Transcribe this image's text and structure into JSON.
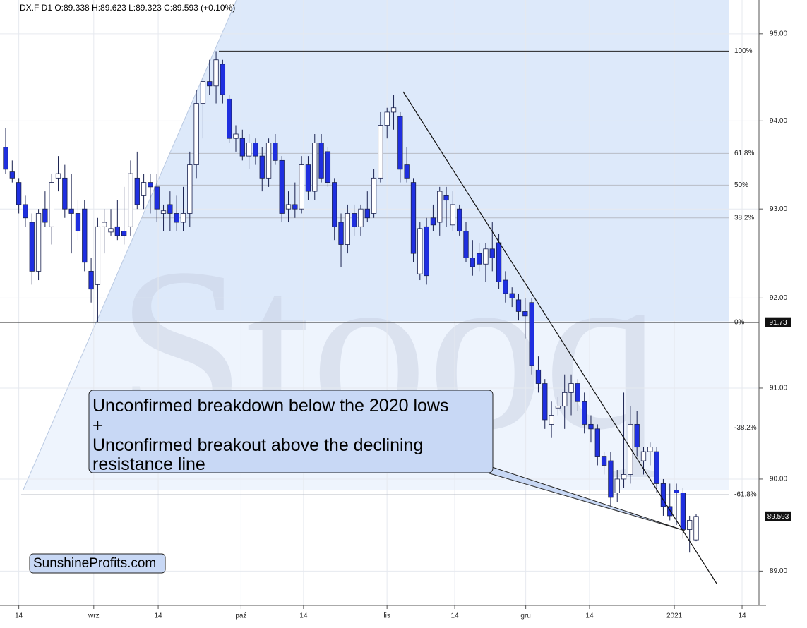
{
  "chart_data": {
    "type": "candlestick",
    "title": "DX.F  D1  O:89.338  H:89.623  L:89.323  C:89.593  (+0.10%)",
    "watermark": "Stooq",
    "branding": "SunshineProfits.com",
    "annotation": [
      "Unconfirmed breakdown below the 2020 lows",
      "+",
      "Unconfirmed breakout above the declining",
      "resistance line"
    ],
    "up_color": "#ffffff",
    "down_color": "#1f2fe0",
    "log_scale": true,
    "grid": true,
    "ylim": [
      88.63,
      95.39
    ],
    "yticks": [
      {
        "value": 89,
        "label": "89.00"
      },
      {
        "value": 90,
        "label": "90.00"
      },
      {
        "value": 91,
        "label": "91.00"
      },
      {
        "value": 92,
        "label": "92.00"
      },
      {
        "value": 93,
        "label": "93.00"
      },
      {
        "value": 94,
        "label": "94.00"
      },
      {
        "value": 95,
        "label": "95.00"
      }
    ],
    "xlim": [
      -0.86,
      113.5
    ],
    "xticks": [
      {
        "value": 2.0,
        "label": "14"
      },
      {
        "value": 13.4,
        "label": "wrz"
      },
      {
        "value": 23.2,
        "label": "14"
      },
      {
        "value": 35.8,
        "label": "paź"
      },
      {
        "value": 45.3,
        "label": "14"
      },
      {
        "value": 58.0,
        "label": "lis"
      },
      {
        "value": 68.3,
        "label": "14"
      },
      {
        "value": 79.1,
        "label": "gru"
      },
      {
        "value": 88.8,
        "label": "14"
      },
      {
        "value": 101.7,
        "label": "2021"
      },
      {
        "value": 112.0,
        "label": "14"
      }
    ],
    "fib_levels": [
      {
        "value": 94.8,
        "label": "100%"
      },
      {
        "value": 93.63,
        "label": "61.8%"
      },
      {
        "value": 93.27,
        "label": "50%"
      },
      {
        "value": 92.9,
        "label": "38.2%"
      },
      {
        "value": 91.73,
        "label": "0%"
      },
      {
        "value": 90.56,
        "label": "-38.2%"
      },
      {
        "value": 89.83,
        "label": "-61.8%"
      }
    ],
    "price_labels": [
      {
        "value": 91.73,
        "label": "91.73"
      },
      {
        "value": 89.593,
        "label": "89.593"
      }
    ],
    "ohlc": [
      [
        93.7,
        93.92,
        93.4,
        93.45
      ],
      [
        93.42,
        93.55,
        93.3,
        93.35
      ],
      [
        93.3,
        93.35,
        92.95,
        93.05
      ],
      [
        93.05,
        93.15,
        92.8,
        92.9
      ],
      [
        92.85,
        92.95,
        92.15,
        92.3
      ],
      [
        92.3,
        93.0,
        92.2,
        92.95
      ],
      [
        93.0,
        93.2,
        92.8,
        92.85
      ],
      [
        92.8,
        93.4,
        92.6,
        93.3
      ],
      [
        93.35,
        93.6,
        93.2,
        93.4
      ],
      [
        93.35,
        93.5,
        92.9,
        93.0
      ],
      [
        93.0,
        93.4,
        92.5,
        92.95
      ],
      [
        92.95,
        93.1,
        92.65,
        92.75
      ],
      [
        93.0,
        93.1,
        92.3,
        92.4
      ],
      [
        92.3,
        92.45,
        91.95,
        92.1
      ],
      [
        92.15,
        92.9,
        91.73,
        92.8
      ],
      [
        92.8,
        93.0,
        92.5,
        92.85
      ],
      [
        92.74,
        93.0,
        92.7,
        92.78
      ],
      [
        92.8,
        93.1,
        92.65,
        92.7
      ],
      [
        92.75,
        93.25,
        92.6,
        92.7
      ],
      [
        92.8,
        93.55,
        92.7,
        93.4
      ],
      [
        93.35,
        93.65,
        93.0,
        93.05
      ],
      [
        93.15,
        93.4,
        93.0,
        93.3
      ],
      [
        93.3,
        93.4,
        92.95,
        93.25
      ],
      [
        93.25,
        93.4,
        92.85,
        93.0
      ],
      [
        92.95,
        93.05,
        92.75,
        92.98
      ],
      [
        93.05,
        93.2,
        92.75,
        92.95
      ],
      [
        92.95,
        93.15,
        92.75,
        92.85
      ],
      [
        92.85,
        93.25,
        92.75,
        92.95
      ],
      [
        92.95,
        93.65,
        92.8,
        93.5
      ],
      [
        93.5,
        94.35,
        93.35,
        94.2
      ],
      [
        94.2,
        94.5,
        93.8,
        94.45
      ],
      [
        94.45,
        94.7,
        94.3,
        94.4
      ],
      [
        94.4,
        94.8,
        94.2,
        94.7
      ],
      [
        94.65,
        94.7,
        94.2,
        94.3
      ],
      [
        94.25,
        94.3,
        93.75,
        93.8
      ],
      [
        93.8,
        93.95,
        93.65,
        93.85
      ],
      [
        93.8,
        93.9,
        93.55,
        93.6
      ],
      [
        93.6,
        93.85,
        93.45,
        93.75
      ],
      [
        93.75,
        93.8,
        93.5,
        93.6
      ],
      [
        93.6,
        93.7,
        93.2,
        93.35
      ],
      [
        93.35,
        93.8,
        93.25,
        93.75
      ],
      [
        93.75,
        93.85,
        93.5,
        93.55
      ],
      [
        93.55,
        93.6,
        92.85,
        92.95
      ],
      [
        93.0,
        93.2,
        92.85,
        93.05
      ],
      [
        93.05,
        93.3,
        92.9,
        93.0
      ],
      [
        93.0,
        93.6,
        92.95,
        93.5
      ],
      [
        93.5,
        93.6,
        93.1,
        93.2
      ],
      [
        93.2,
        93.85,
        93.1,
        93.75
      ],
      [
        93.75,
        93.85,
        93.3,
        93.35
      ],
      [
        93.65,
        93.7,
        93.25,
        93.3
      ],
      [
        93.3,
        93.35,
        92.65,
        92.8
      ],
      [
        92.85,
        92.95,
        92.35,
        92.6
      ],
      [
        92.6,
        93.05,
        92.5,
        92.95
      ],
      [
        92.95,
        93.05,
        92.7,
        92.8
      ],
      [
        92.8,
        93.05,
        92.7,
        93.0
      ],
      [
        93.0,
        93.2,
        92.85,
        92.9
      ],
      [
        92.95,
        93.45,
        92.9,
        93.35
      ],
      [
        93.35,
        94.1,
        93.3,
        93.95
      ],
      [
        93.95,
        94.15,
        93.8,
        94.1
      ],
      [
        94.1,
        94.3,
        93.9,
        94.15
      ],
      [
        94.05,
        94.1,
        93.3,
        93.45
      ],
      [
        93.5,
        93.7,
        93.3,
        93.35
      ],
      [
        93.3,
        93.35,
        92.4,
        92.5
      ],
      [
        92.27,
        92.85,
        92.2,
        92.78
      ],
      [
        92.8,
        92.9,
        92.15,
        92.25
      ],
      [
        92.9,
        93.05,
        92.75,
        92.82
      ],
      [
        92.85,
        93.25,
        92.7,
        93.2
      ],
      [
        93.15,
        93.25,
        92.8,
        93.1
      ],
      [
        92.82,
        93.2,
        92.75,
        93.05
      ],
      [
        93.0,
        93.05,
        92.7,
        92.75
      ],
      [
        92.75,
        92.85,
        92.4,
        92.45
      ],
      [
        92.45,
        92.65,
        92.25,
        92.35
      ],
      [
        92.5,
        92.62,
        92.3,
        92.38
      ],
      [
        92.38,
        92.62,
        92.18,
        92.55
      ],
      [
        92.55,
        92.85,
        92.3,
        92.45
      ],
      [
        92.62,
        92.72,
        92.1,
        92.18
      ],
      [
        92.2,
        92.3,
        91.95,
        92.05
      ],
      [
        92.05,
        92.12,
        91.9,
        92.0
      ],
      [
        91.98,
        92.05,
        91.75,
        91.85
      ],
      [
        91.85,
        92.0,
        91.55,
        91.8
      ],
      [
        91.95,
        92.0,
        91.15,
        91.25
      ],
      [
        91.2,
        91.35,
        90.95,
        91.05
      ],
      [
        91.05,
        91.1,
        90.55,
        90.65
      ],
      [
        90.6,
        90.85,
        90.45,
        90.7
      ],
      [
        90.78,
        90.9,
        90.7,
        90.8
      ],
      [
        90.8,
        91.15,
        90.55,
        90.95
      ],
      [
        90.95,
        91.15,
        90.7,
        91.05
      ],
      [
        91.05,
        91.1,
        90.75,
        90.85
      ],
      [
        90.85,
        90.95,
        90.5,
        90.6
      ],
      [
        90.6,
        90.7,
        90.4,
        90.55
      ],
      [
        90.55,
        90.6,
        90.15,
        90.25
      ],
      [
        90.25,
        90.3,
        90.05,
        90.15
      ],
      [
        90.2,
        90.3,
        89.7,
        89.8
      ],
      [
        89.85,
        90.1,
        89.75,
        90.0
      ],
      [
        90.0,
        90.95,
        89.9,
        90.05
      ],
      [
        90.05,
        90.8,
        89.95,
        90.6
      ],
      [
        90.6,
        90.75,
        90.25,
        90.35
      ],
      [
        90.2,
        90.35,
        90.05,
        90.3
      ],
      [
        90.3,
        90.4,
        90.15,
        90.35
      ],
      [
        90.3,
        90.35,
        89.85,
        89.95
      ],
      [
        89.95,
        90.0,
        89.6,
        89.7
      ],
      [
        89.7,
        89.95,
        89.55,
        89.6
      ],
      [
        89.88,
        89.95,
        89.5,
        89.85
      ],
      [
        89.85,
        89.9,
        89.35,
        89.45
      ],
      [
        89.45,
        89.6,
        89.2,
        89.55
      ],
      [
        89.338,
        89.623,
        89.323,
        89.593
      ]
    ]
  }
}
